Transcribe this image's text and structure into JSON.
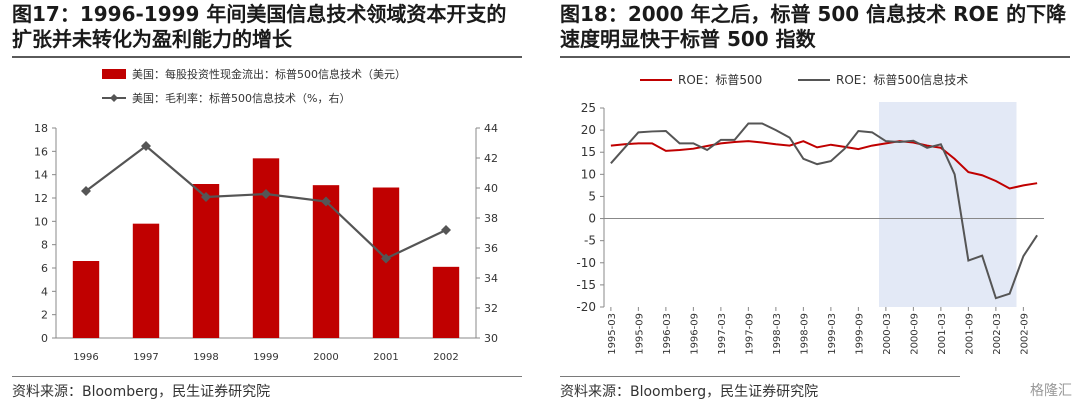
{
  "left": {
    "title_line1": "图17：1996-1999 年间美国信息技术领域资本开支的",
    "title_line2": "扩张并未转化为盈利能力的增长",
    "source": "资料来源：Bloomberg，民生证券研究院"
  },
  "right": {
    "title_line1": "图18：2000 年之后，标普 500 信息技术 ROE 的下降",
    "title_line2": "速度明显快于标普 500 指数",
    "source": "资料来源：Bloomberg，民生证券研究院"
  },
  "watermark": "格隆汇",
  "chart_data": [
    {
      "type": "bar",
      "categories": [
        "1996",
        "1997",
        "1998",
        "1999",
        "2000",
        "2001",
        "2002"
      ],
      "series": [
        {
          "name": "美国：每股投资性现金流出：标普500信息技术（美元）",
          "type": "bar",
          "axis": "left",
          "color": "#C00000",
          "values": [
            6.6,
            9.8,
            13.2,
            15.4,
            13.1,
            12.9,
            6.1
          ]
        },
        {
          "name": "美国：毛利率：标普500信息技术（%，右）",
          "type": "line",
          "axis": "right",
          "color": "#555555",
          "marker": "diamond",
          "values": [
            39.8,
            42.8,
            39.4,
            39.6,
            39.1,
            35.3,
            37.2
          ]
        }
      ],
      "y_left": {
        "min": 0,
        "max": 18,
        "ticks": [
          0,
          2,
          4,
          6,
          8,
          10,
          12,
          14,
          16,
          18
        ]
      },
      "y_right": {
        "min": 30,
        "max": 44,
        "ticks": [
          30,
          32,
          34,
          36,
          38,
          40,
          42,
          44
        ]
      },
      "legend_position": "top-left"
    },
    {
      "type": "line",
      "x": [
        "1995-03",
        "1995-06",
        "1995-09",
        "1995-12",
        "1996-03",
        "1996-06",
        "1996-09",
        "1996-12",
        "1997-03",
        "1997-06",
        "1997-09",
        "1997-12",
        "1998-03",
        "1998-06",
        "1998-09",
        "1998-12",
        "1999-03",
        "1999-06",
        "1999-09",
        "1999-12",
        "2000-03",
        "2000-06",
        "2000-09",
        "2000-12",
        "2001-03",
        "2001-06",
        "2001-09",
        "2001-12",
        "2002-03",
        "2002-06",
        "2002-09",
        "2002-12"
      ],
      "x_tick_labels": [
        "1995-03",
        "1995-09",
        "1996-03",
        "1996-09",
        "1997-03",
        "1997-09",
        "1998-03",
        "1998-09",
        "1999-03",
        "1999-09",
        "2000-03",
        "2000-09",
        "2001-03",
        "2001-09",
        "2002-03",
        "2002-09"
      ],
      "series": [
        {
          "name": "ROE：标普500",
          "color": "#C00000",
          "values": [
            16.5,
            16.8,
            17.0,
            17.0,
            15.3,
            15.5,
            15.8,
            16.4,
            17.0,
            17.3,
            17.5,
            17.2,
            16.8,
            16.5,
            17.5,
            16.1,
            16.7,
            16.2,
            15.7,
            16.5,
            17.0,
            17.5,
            17.2,
            16.5,
            16.0,
            13.5,
            10.5,
            9.8,
            8.5,
            6.8,
            7.5,
            8.0
          ]
        },
        {
          "name": "ROE：标普500信息技术",
          "color": "#555555",
          "values": [
            12.5,
            16.0,
            19.5,
            19.7,
            19.8,
            17.0,
            17.0,
            15.5,
            17.8,
            17.8,
            21.5,
            21.5,
            20.0,
            18.3,
            13.5,
            12.3,
            13.0,
            15.8,
            19.8,
            19.5,
            17.5,
            17.3,
            17.6,
            16.0,
            16.8,
            10.0,
            -9.5,
            -8.4,
            -18.0,
            -17.0,
            -8.5,
            -3.8
          ]
        }
      ],
      "ylim": [
        -20,
        25
      ],
      "y_ticks": [
        -20,
        -15,
        -10,
        -5,
        0,
        5,
        10,
        15,
        20,
        25
      ],
      "shaded_region": {
        "from": "2000-03",
        "to": "2002-06",
        "color": "#E3E9F6"
      },
      "legend_position": "top"
    }
  ]
}
